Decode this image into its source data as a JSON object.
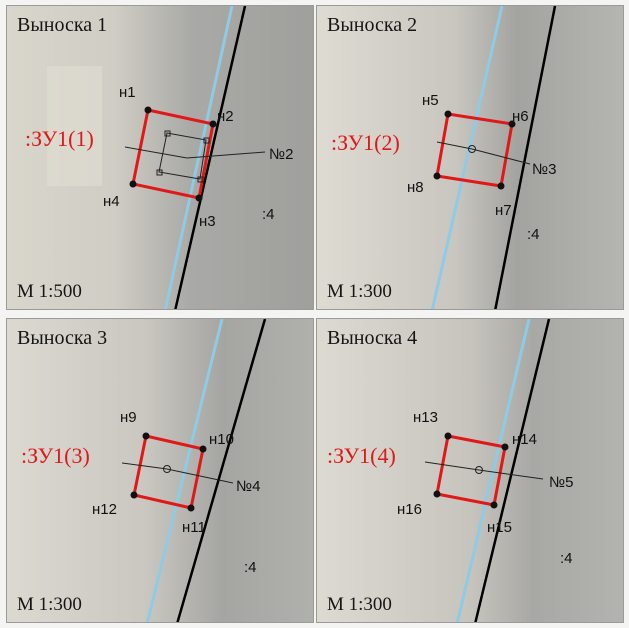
{
  "panels": [
    {
      "title": "Выноска 1",
      "scale": "М 1:500",
      "zu": ":ЗУ1(1)",
      "num": "№2",
      "quarter": ":4",
      "pts": [
        "н1",
        "н2",
        "н3",
        "н4"
      ]
    },
    {
      "title": "Выноска 2",
      "scale": "М 1:300",
      "zu": ":ЗУ1(2)",
      "num": "№3",
      "quarter": ":4",
      "pts": [
        "н5",
        "н6",
        "н7",
        "н8"
      ]
    },
    {
      "title": "Выноска 3",
      "scale": "М 1:300",
      "zu": ":ЗУ1(3)",
      "num": "№4",
      "quarter": ":4",
      "pts": [
        "н9",
        "н10",
        "н11",
        "н12"
      ]
    },
    {
      "title": "Выноска 4",
      "scale": "М 1:300",
      "zu": ":ЗУ1(4)",
      "num": "№5",
      "quarter": ":4",
      "pts": [
        "н13",
        "н14",
        "н15",
        "н16"
      ]
    }
  ],
  "colors": {
    "parcel": "#e01818",
    "boundary": "#000000",
    "road": "#8ecbe6"
  }
}
